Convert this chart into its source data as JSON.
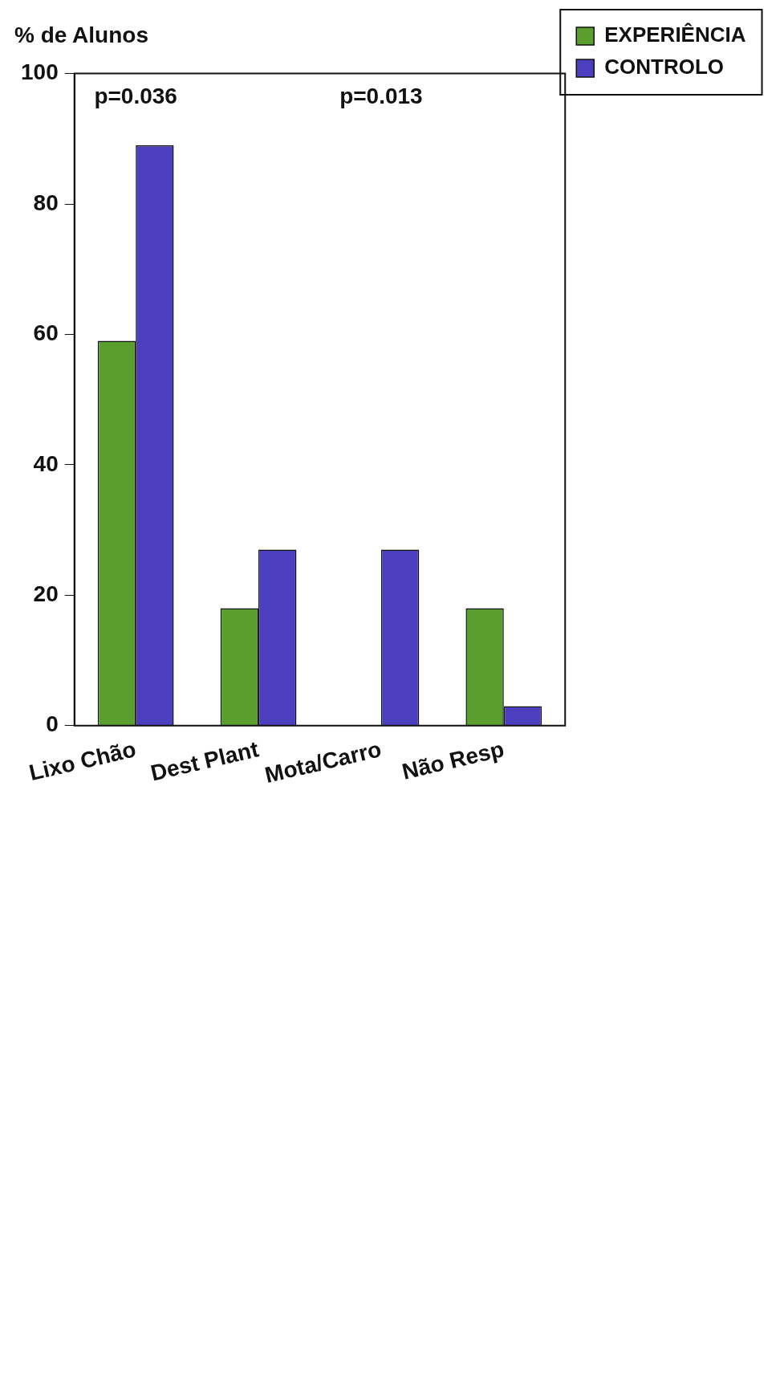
{
  "chart_data": {
    "type": "bar",
    "ylabel": "% de Alunos",
    "categories": [
      "Lixo Chão",
      "Dest Plant",
      "Mota/Carro",
      "Não Resp"
    ],
    "series": [
      {
        "name": "EXPERIÊNCIA",
        "color": "#5a9e2e",
        "values": [
          59,
          18,
          0,
          18
        ]
      },
      {
        "name": "CONTROLO",
        "color": "#4b3fbf",
        "values": [
          89,
          27,
          27,
          3
        ]
      }
    ],
    "ylim": [
      0,
      100
    ],
    "yticks": [
      0,
      20,
      40,
      60,
      80,
      100
    ],
    "grid": false,
    "legend": "right",
    "annotations": [
      "p=0.036",
      "p=0.013"
    ]
  }
}
